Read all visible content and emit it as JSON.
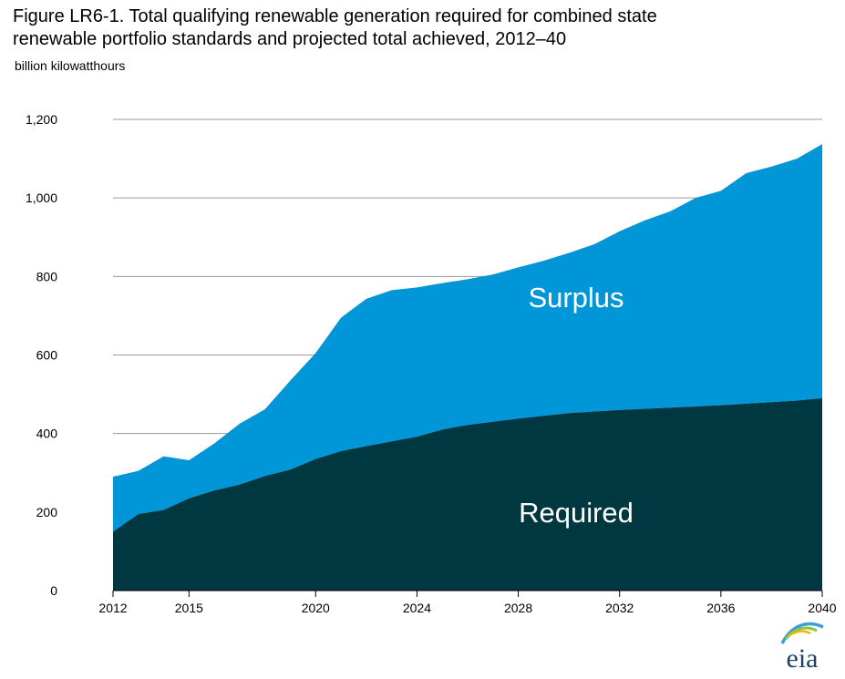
{
  "title_line1": "Figure LR6-1. Total qualifying renewable generation required for combined state",
  "title_line2": "renewable portfolio standards and projected total achieved, 2012–40",
  "unit_label": "billion kilowatthours",
  "logo_text": "eia",
  "chart_data": {
    "type": "area",
    "stacked": true,
    "ylim": [
      0,
      1200
    ],
    "xlim": [
      2012,
      2040
    ],
    "yticks": [
      0,
      200,
      400,
      600,
      800,
      1000,
      1200
    ],
    "ytick_labels": [
      "0",
      "200",
      "400",
      "600",
      "800",
      "1,000",
      "1,200"
    ],
    "xticks": [
      2012,
      2015,
      2020,
      2024,
      2028,
      2032,
      2036,
      2040
    ],
    "xtick_labels": [
      "2012",
      "2015",
      "2020",
      "2024",
      "2028",
      "2032",
      "2036",
      "2040"
    ],
    "grid": "horizontal",
    "x": [
      2012,
      2013,
      2014,
      2015,
      2016,
      2017,
      2018,
      2019,
      2020,
      2021,
      2022,
      2023,
      2024,
      2025,
      2026,
      2027,
      2028,
      2029,
      2030,
      2031,
      2032,
      2033,
      2034,
      2035,
      2036,
      2037,
      2038,
      2039,
      2040
    ],
    "series": [
      {
        "name": "Required",
        "color": "#003842",
        "values": [
          150,
          195,
          205,
          235,
          255,
          270,
          292,
          308,
          335,
          355,
          368,
          380,
          392,
          410,
          422,
          430,
          438,
          445,
          452,
          456,
          460,
          463,
          466,
          469,
          472,
          476,
          480,
          484,
          490
        ]
      },
      {
        "name": "Surplus",
        "color": "#0096d7",
        "total_values": [
          290,
          305,
          342,
          332,
          375,
          425,
          462,
          535,
          605,
          695,
          743,
          765,
          772,
          783,
          793,
          805,
          823,
          840,
          860,
          882,
          915,
          943,
          966,
          1000,
          1018,
          1063,
          1080,
          1100,
          1137
        ]
      }
    ]
  }
}
